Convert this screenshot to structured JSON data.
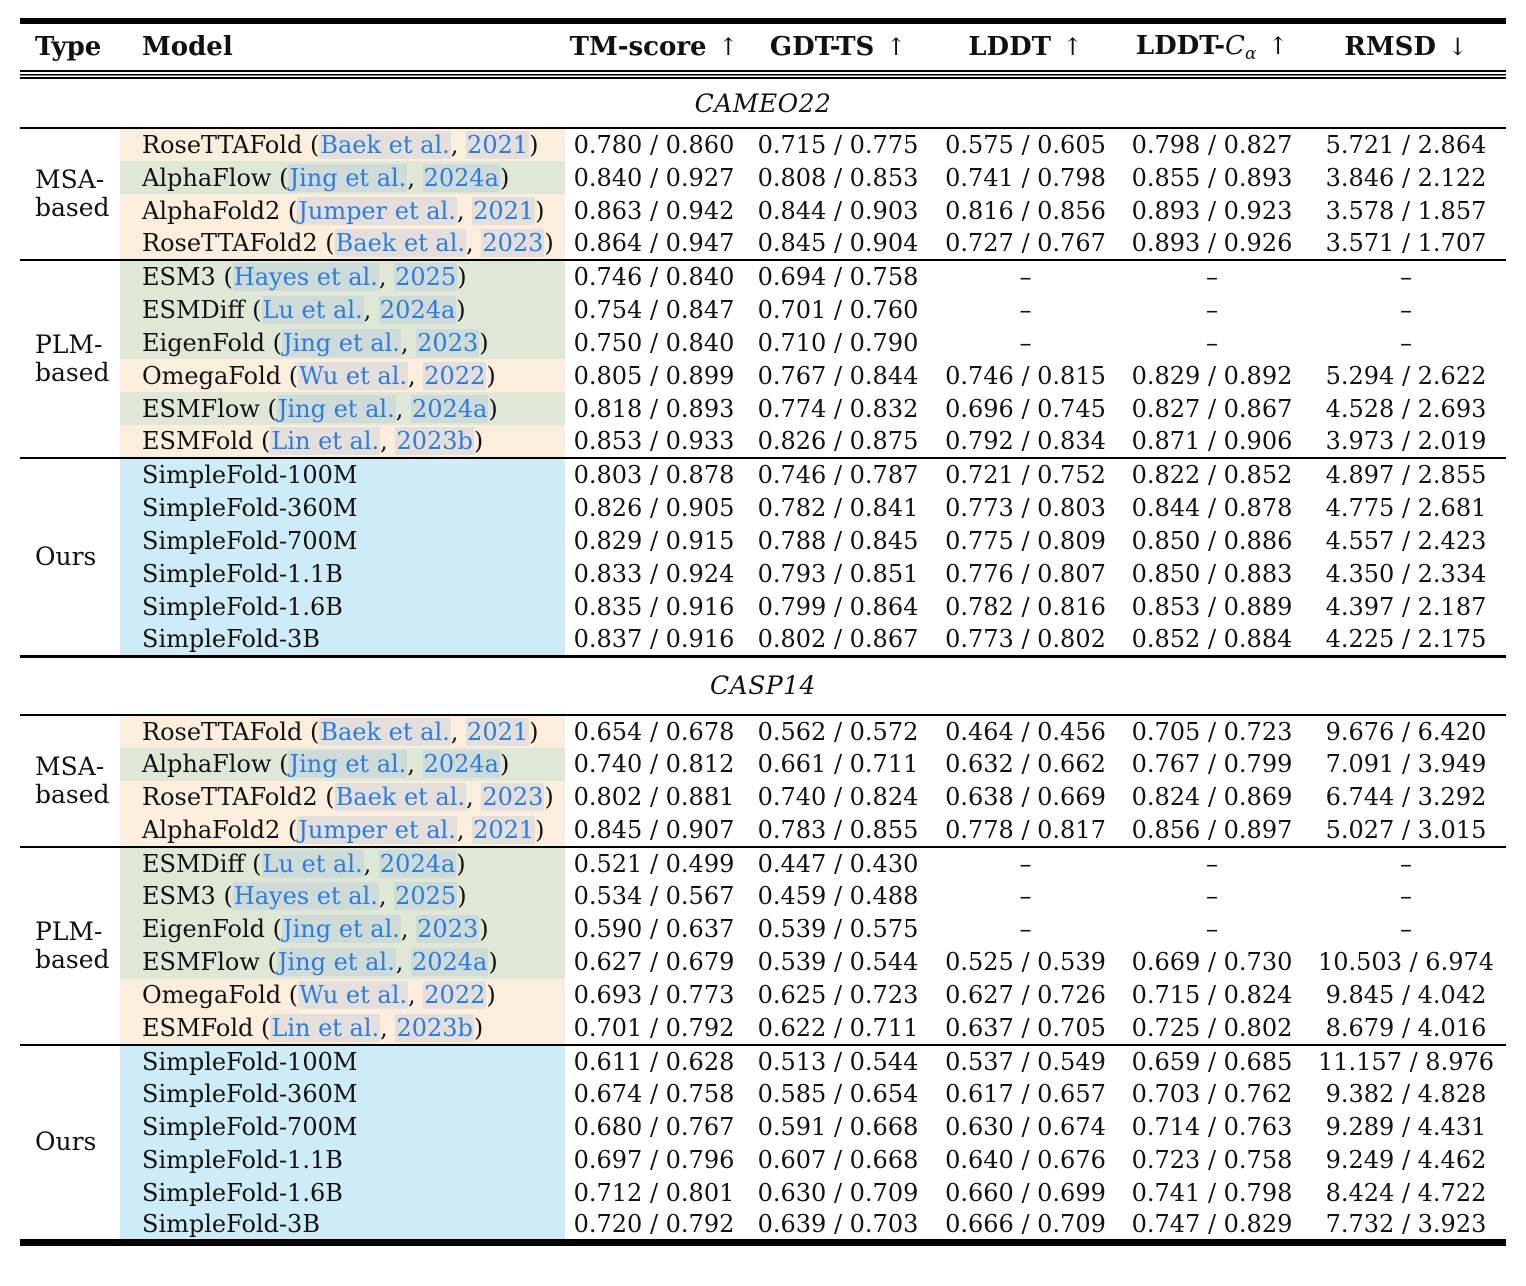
{
  "table": {
    "columns": [
      {
        "key": "type",
        "label": "Type",
        "align": "left"
      },
      {
        "key": "model",
        "label": "Model",
        "align": "left"
      },
      {
        "key": "tm",
        "label": "TM-score",
        "arrow": "↑"
      },
      {
        "key": "gdt",
        "label": "GDT-TS",
        "arrow": "↑"
      },
      {
        "key": "lddt",
        "label": "LDDT",
        "arrow": "↑"
      },
      {
        "key": "lddt_ca",
        "label": "LDDT-",
        "italic_part": "C",
        "subscript": "α",
        "arrow": "↑"
      },
      {
        "key": "rmsd",
        "label": "RMSD",
        "arrow": "↓"
      }
    ],
    "colors": {
      "peach": "#fceedd",
      "green": "#dfe8d6",
      "blue": "#cdecf8",
      "link_blue": "#2b7de0"
    },
    "missing_marker": "–",
    "sections": [
      {
        "name": "CAMEO22",
        "groups": [
          {
            "type_lines": [
              "MSA-",
              "based"
            ],
            "rows": [
              {
                "model": "RoseTTAFold",
                "cite_authors": "Baek et al.",
                "cite_year": "2021",
                "bg": "peach",
                "cells": [
                  "0.780 / 0.860",
                  "0.715 / 0.775",
                  "0.575 / 0.605",
                  "0.798 / 0.827",
                  "5.721 / 2.864"
                ]
              },
              {
                "model": "AlphaFlow",
                "cite_authors": "Jing et al.",
                "cite_year": "2024a",
                "bg": "green",
                "cells": [
                  "0.840 / 0.927",
                  "0.808 / 0.853",
                  "0.741 / 0.798",
                  "0.855 / 0.893",
                  "3.846 / 2.122"
                ]
              },
              {
                "model": "AlphaFold2",
                "cite_authors": "Jumper et al.",
                "cite_year": "2021",
                "bg": "peach",
                "cells": [
                  "0.863 / 0.942",
                  "0.844 / 0.903",
                  "0.816 / 0.856",
                  "0.893 / 0.923",
                  "3.578 / 1.857"
                ]
              },
              {
                "model": "RoseTTAFold2",
                "cite_authors": "Baek et al.",
                "cite_year": "2023",
                "bg": "peach",
                "cells": [
                  "0.864 / 0.947",
                  "0.845 / 0.904",
                  "0.727 / 0.767",
                  "0.893 / 0.926",
                  "3.571 / 1.707"
                ]
              }
            ]
          },
          {
            "type_lines": [
              "PLM-",
              "based"
            ],
            "rows": [
              {
                "model": "ESM3",
                "cite_authors": "Hayes et al.",
                "cite_year": "2025",
                "bg": "green",
                "cells": [
                  "0.746 / 0.840",
                  "0.694 / 0.758",
                  "–",
                  "–",
                  "–"
                ]
              },
              {
                "model": "ESMDiff",
                "cite_authors": "Lu et al.",
                "cite_year": "2024a",
                "bg": "green",
                "cells": [
                  "0.754 / 0.847",
                  "0.701 / 0.760",
                  "–",
                  "–",
                  "–"
                ]
              },
              {
                "model": "EigenFold",
                "cite_authors": "Jing et al.",
                "cite_year": "2023",
                "bg": "green",
                "cells": [
                  "0.750 / 0.840",
                  "0.710 / 0.790",
                  "–",
                  "–",
                  "–"
                ]
              },
              {
                "model": "OmegaFold",
                "cite_authors": "Wu et al.",
                "cite_year": "2022",
                "bg": "peach",
                "cells": [
                  "0.805 / 0.899",
                  "0.767 / 0.844",
                  "0.746 / 0.815",
                  "0.829 / 0.892",
                  "5.294 / 2.622"
                ]
              },
              {
                "model": "ESMFlow",
                "cite_authors": "Jing et al.",
                "cite_year": "2024a",
                "bg": "green",
                "cells": [
                  "0.818 / 0.893",
                  "0.774 / 0.832",
                  "0.696 / 0.745",
                  "0.827 / 0.867",
                  "4.528 / 2.693"
                ]
              },
              {
                "model": "ESMFold",
                "cite_authors": "Lin et al.",
                "cite_year": "2023b",
                "bg": "peach",
                "cells": [
                  "0.853 / 0.933",
                  "0.826 / 0.875",
                  "0.792 / 0.834",
                  "0.871 / 0.906",
                  "3.973 / 2.019"
                ]
              }
            ]
          },
          {
            "type_lines": [
              "Ours"
            ],
            "rows": [
              {
                "model": "SimpleFold-100M",
                "bg": "blue",
                "cells": [
                  "0.803 / 0.878",
                  "0.746 / 0.787",
                  "0.721 / 0.752",
                  "0.822 / 0.852",
                  "4.897 / 2.855"
                ]
              },
              {
                "model": "SimpleFold-360M",
                "bg": "blue",
                "cells": [
                  "0.826 / 0.905",
                  "0.782 / 0.841",
                  "0.773 / 0.803",
                  "0.844 / 0.878",
                  "4.775 / 2.681"
                ]
              },
              {
                "model": "SimpleFold-700M",
                "bg": "blue",
                "cells": [
                  "0.829 / 0.915",
                  "0.788 / 0.845",
                  "0.775 / 0.809",
                  "0.850 / 0.886",
                  "4.557 / 2.423"
                ]
              },
              {
                "model": "SimpleFold-1.1B",
                "bg": "blue",
                "cells": [
                  "0.833 / 0.924",
                  "0.793 / 0.851",
                  "0.776 / 0.807",
                  "0.850 / 0.883",
                  "4.350 / 2.334"
                ]
              },
              {
                "model": "SimpleFold-1.6B",
                "bg": "blue",
                "cells": [
                  "0.835 / 0.916",
                  "0.799 / 0.864",
                  "0.782 / 0.816",
                  "0.853 / 0.889",
                  "4.397 / 2.187"
                ]
              },
              {
                "model": "SimpleFold-3B",
                "bg": "blue",
                "cells": [
                  "0.837 / 0.916",
                  "0.802 / 0.867",
                  "0.773 / 0.802",
                  "0.852 / 0.884",
                  "4.225 / 2.175"
                ]
              }
            ]
          }
        ]
      },
      {
        "name": "CASP14",
        "groups": [
          {
            "type_lines": [
              "MSA-",
              "based"
            ],
            "rows": [
              {
                "model": "RoseTTAFold",
                "cite_authors": "Baek et al.",
                "cite_year": "2021",
                "bg": "peach",
                "cells": [
                  "0.654 / 0.678",
                  "0.562 / 0.572",
                  "0.464 / 0.456",
                  "0.705 / 0.723",
                  "9.676 / 6.420"
                ]
              },
              {
                "model": "AlphaFlow",
                "cite_authors": "Jing et al.",
                "cite_year": "2024a",
                "bg": "green",
                "cells": [
                  "0.740 / 0.812",
                  "0.661 / 0.711",
                  "0.632 / 0.662",
                  "0.767 / 0.799",
                  "7.091 / 3.949"
                ]
              },
              {
                "model": "RoseTTAFold2",
                "cite_authors": "Baek et al.",
                "cite_year": "2023",
                "bg": "peach",
                "cells": [
                  "0.802 / 0.881",
                  "0.740 / 0.824",
                  "0.638 / 0.669",
                  "0.824 / 0.869",
                  "6.744 / 3.292"
                ]
              },
              {
                "model": "AlphaFold2",
                "cite_authors": "Jumper et al.",
                "cite_year": "2021",
                "bg": "peach",
                "cells": [
                  "0.845 / 0.907",
                  "0.783 / 0.855",
                  "0.778 / 0.817",
                  "0.856 / 0.897",
                  "5.027 / 3.015"
                ]
              }
            ]
          },
          {
            "type_lines": [
              "PLM-",
              "based"
            ],
            "rows": [
              {
                "model": "ESMDiff",
                "cite_authors": "Lu et al.",
                "cite_year": "2024a",
                "bg": "green",
                "cells": [
                  "0.521 / 0.499",
                  "0.447 / 0.430",
                  "–",
                  "–",
                  "–"
                ]
              },
              {
                "model": "ESM3",
                "cite_authors": "Hayes et al.",
                "cite_year": "2025",
                "bg": "green",
                "cells": [
                  "0.534 / 0.567",
                  "0.459 / 0.488",
                  "–",
                  "–",
                  "–"
                ]
              },
              {
                "model": "EigenFold",
                "cite_authors": "Jing et al.",
                "cite_year": "2023",
                "bg": "green",
                "cells": [
                  "0.590 / 0.637",
                  "0.539 / 0.575",
                  "–",
                  "–",
                  "–"
                ]
              },
              {
                "model": "ESMFlow",
                "cite_authors": "Jing et al.",
                "cite_year": "2024a",
                "bg": "green",
                "cells": [
                  "0.627 / 0.679",
                  "0.539 / 0.544",
                  "0.525 / 0.539",
                  "0.669 / 0.730",
                  "10.503 / 6.974"
                ]
              },
              {
                "model": "OmegaFold",
                "cite_authors": "Wu et al.",
                "cite_year": "2022",
                "bg": "peach",
                "cells": [
                  "0.693 / 0.773",
                  "0.625 / 0.723",
                  "0.627 / 0.726",
                  "0.715 / 0.824",
                  "9.845 / 4.042"
                ]
              },
              {
                "model": "ESMFold",
                "cite_authors": "Lin et al.",
                "cite_year": "2023b",
                "bg": "peach",
                "cells": [
                  "0.701 / 0.792",
                  "0.622 / 0.711",
                  "0.637 / 0.705",
                  "0.725 / 0.802",
                  "8.679 / 4.016"
                ]
              }
            ]
          },
          {
            "type_lines": [
              "Ours"
            ],
            "rows": [
              {
                "model": "SimpleFold-100M",
                "bg": "blue",
                "cells": [
                  "0.611 / 0.628",
                  "0.513 / 0.544",
                  "0.537 / 0.549",
                  "0.659 / 0.685",
                  "11.157 / 8.976"
                ]
              },
              {
                "model": "SimpleFold-360M",
                "bg": "blue",
                "cells": [
                  "0.674 / 0.758",
                  "0.585 / 0.654",
                  "0.617 / 0.657",
                  "0.703 / 0.762",
                  "9.382 / 4.828"
                ]
              },
              {
                "model": "SimpleFold-700M",
                "bg": "blue",
                "cells": [
                  "0.680 / 0.767",
                  "0.591 / 0.668",
                  "0.630 / 0.674",
                  "0.714 / 0.763",
                  "9.289 / 4.431"
                ]
              },
              {
                "model": "SimpleFold-1.1B",
                "bg": "blue",
                "cells": [
                  "0.697 / 0.796",
                  "0.607 / 0.668",
                  "0.640 / 0.676",
                  "0.723 / 0.758",
                  "9.249 / 4.462"
                ]
              },
              {
                "model": "SimpleFold-1.6B",
                "bg": "blue",
                "cells": [
                  "0.712 / 0.801",
                  "0.630 / 0.709",
                  "0.660 / 0.699",
                  "0.741 / 0.798",
                  "8.424 / 4.722"
                ]
              },
              {
                "model": "SimpleFold-3B",
                "bg": "blue",
                "cells": [
                  "0.720 / 0.792",
                  "0.639 / 0.703",
                  "0.666 / 0.709",
                  "0.747 / 0.829",
                  "7.732 / 3.923"
                ]
              }
            ]
          }
        ]
      }
    ]
  }
}
